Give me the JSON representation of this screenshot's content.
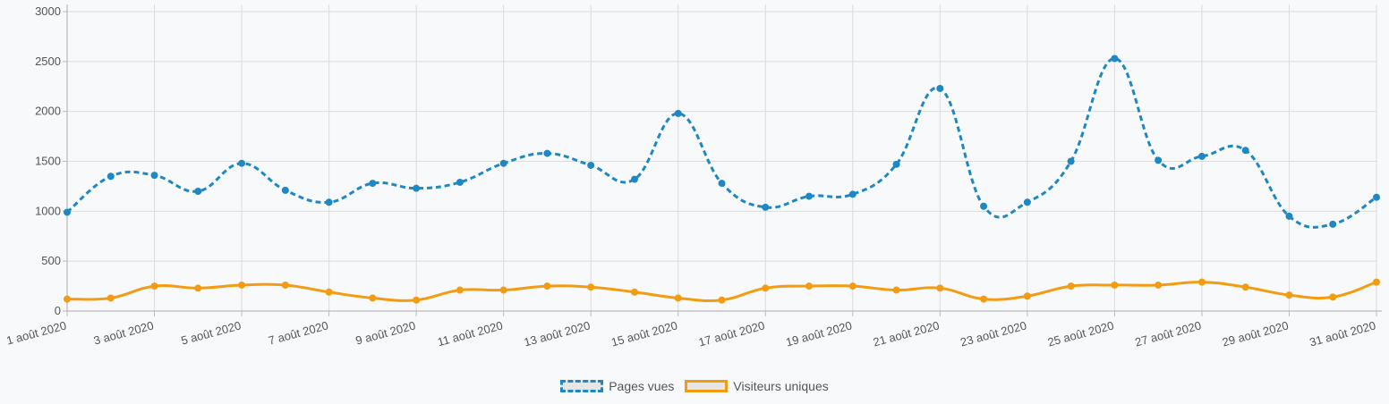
{
  "chart_data": {
    "type": "line",
    "title": "",
    "xlabel": "",
    "ylabel": "",
    "ylim": [
      0,
      3000
    ],
    "yticks": [
      0,
      500,
      1000,
      1500,
      2000,
      2500,
      3000
    ],
    "grid": true,
    "legend_position": "bottom",
    "x": [
      "1 août 2020",
      "2 août 2020",
      "3 août 2020",
      "4 août 2020",
      "5 août 2020",
      "6 août 2020",
      "7 août 2020",
      "8 août 2020",
      "9 août 2020",
      "10 août 2020",
      "11 août 2020",
      "12 août 2020",
      "13 août 2020",
      "14 août 2020",
      "15 août 2020",
      "16 août 2020",
      "17 août 2020",
      "18 août 2020",
      "19 août 2020",
      "20 août 2020",
      "21 août 2020",
      "22 août 2020",
      "23 août 2020",
      "24 août 2020",
      "25 août 2020",
      "26 août 2020",
      "27 août 2020",
      "28 août 2020",
      "29 août 2020",
      "30 août 2020",
      "31 août 2020"
    ],
    "xtick_labels": [
      "1 août 2020",
      "3 août 2020",
      "5 août 2020",
      "7 août 2020",
      "9 août 2020",
      "11 août 2020",
      "13 août 2020",
      "15 août 2020",
      "17 août 2020",
      "19 août 2020",
      "21 août 2020",
      "23 août 2020",
      "25 août 2020",
      "27 août 2020",
      "29 août 2020",
      "31 août 2020"
    ],
    "series": [
      {
        "name": "Pages vues",
        "color": "#1e88c4",
        "dashed": true,
        "values": [
          990,
          1350,
          1360,
          1200,
          1480,
          1210,
          1090,
          1280,
          1230,
          1290,
          1480,
          1580,
          1460,
          1320,
          1980,
          1280,
          1040,
          1150,
          1170,
          1470,
          2230,
          1050,
          1090,
          1500,
          2530,
          1510,
          1550,
          1610,
          950,
          870,
          1140
        ]
      },
      {
        "name": "Visiteurs uniques",
        "color": "#f39c12",
        "dashed": false,
        "values": [
          120,
          130,
          250,
          230,
          260,
          260,
          190,
          130,
          110,
          210,
          210,
          250,
          240,
          190,
          130,
          110,
          230,
          250,
          250,
          210,
          230,
          120,
          150,
          250,
          260,
          260,
          290,
          240,
          160,
          140,
          290
        ]
      }
    ]
  }
}
